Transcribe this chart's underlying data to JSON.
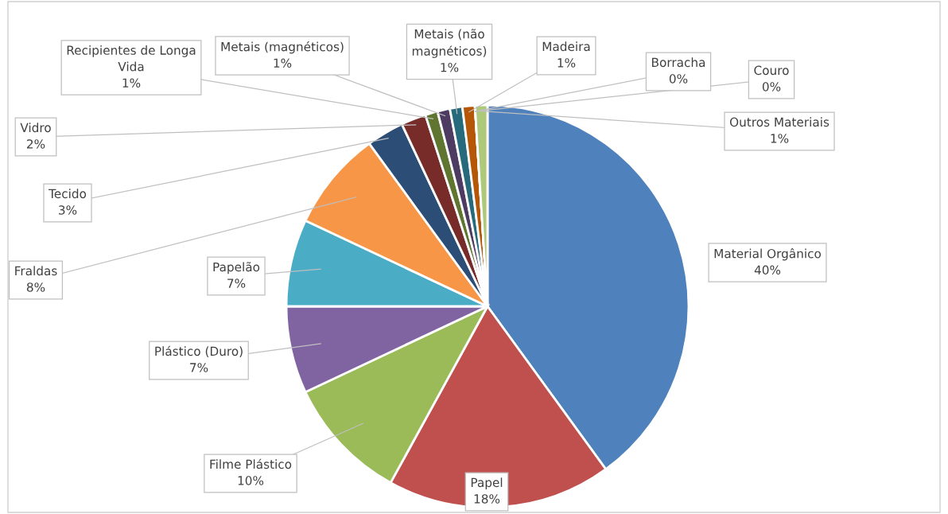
{
  "chart_data": {
    "type": "pie",
    "categories": [
      "Material Orgânico",
      "Papel",
      "Filme Plástico",
      "Plástico (Duro)",
      "Papelão",
      "Fraldas",
      "Tecido",
      "Vidro",
      "Recipientes de Longa\nVida",
      "Metais (magnéticos)",
      "Metais (não\nmagnéticos)",
      "Madeira",
      "Borracha",
      "Couro",
      "Outros Materiais"
    ],
    "values": [
      40,
      18,
      10,
      7,
      7,
      8,
      3,
      2,
      1,
      1,
      1,
      1,
      0,
      0,
      1
    ],
    "value_labels": [
      "40%",
      "18%",
      "10%",
      "7%",
      "7%",
      "8%",
      "3%",
      "2%",
      "1%",
      "1%",
      "1%",
      "1%",
      "0%",
      "0%",
      "1%"
    ],
    "colors": [
      "#4f81bd",
      "#c0504d",
      "#9bbb59",
      "#8064a2",
      "#4bacc6",
      "#f79646",
      "#2c4d75",
      "#772c2a",
      "#5f7530",
      "#4d3b62",
      "#276a7c",
      "#b65708",
      "#729aca",
      "#cd7371",
      "#afc97a"
    ],
    "legend": false
  }
}
